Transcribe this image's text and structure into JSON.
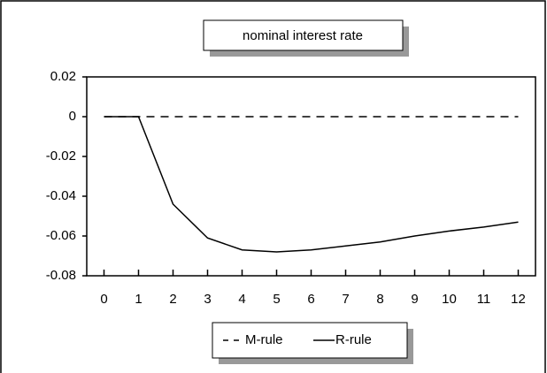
{
  "chart_data": {
    "type": "line",
    "title": "nominal interest rate",
    "x": [
      0,
      1,
      2,
      3,
      4,
      5,
      6,
      7,
      8,
      9,
      10,
      11,
      12
    ],
    "series": [
      {
        "name": "M-rule",
        "color": "#000000",
        "line_style": "dashed",
        "values": [
          0,
          0,
          0,
          0,
          0,
          0,
          0,
          0,
          0,
          0,
          0,
          0,
          0
        ]
      },
      {
        "name": "R-rule",
        "color": "#000000",
        "line_style": "solid",
        "values": [
          0,
          0,
          -0.044,
          -0.061,
          -0.067,
          -0.068,
          -0.067,
          -0.065,
          -0.063,
          -0.06,
          -0.0575,
          -0.0555,
          -0.053
        ]
      }
    ],
    "xlim": [
      -0.5,
      12.5
    ],
    "xticks": [
      0,
      1,
      2,
      3,
      4,
      5,
      6,
      7,
      8,
      9,
      10,
      11,
      12
    ],
    "ylim": [
      -0.08,
      0.02
    ],
    "yticks": [
      0.02,
      0,
      -0.02,
      -0.04,
      -0.06,
      -0.08
    ],
    "grid": false,
    "legend": "bottom"
  }
}
